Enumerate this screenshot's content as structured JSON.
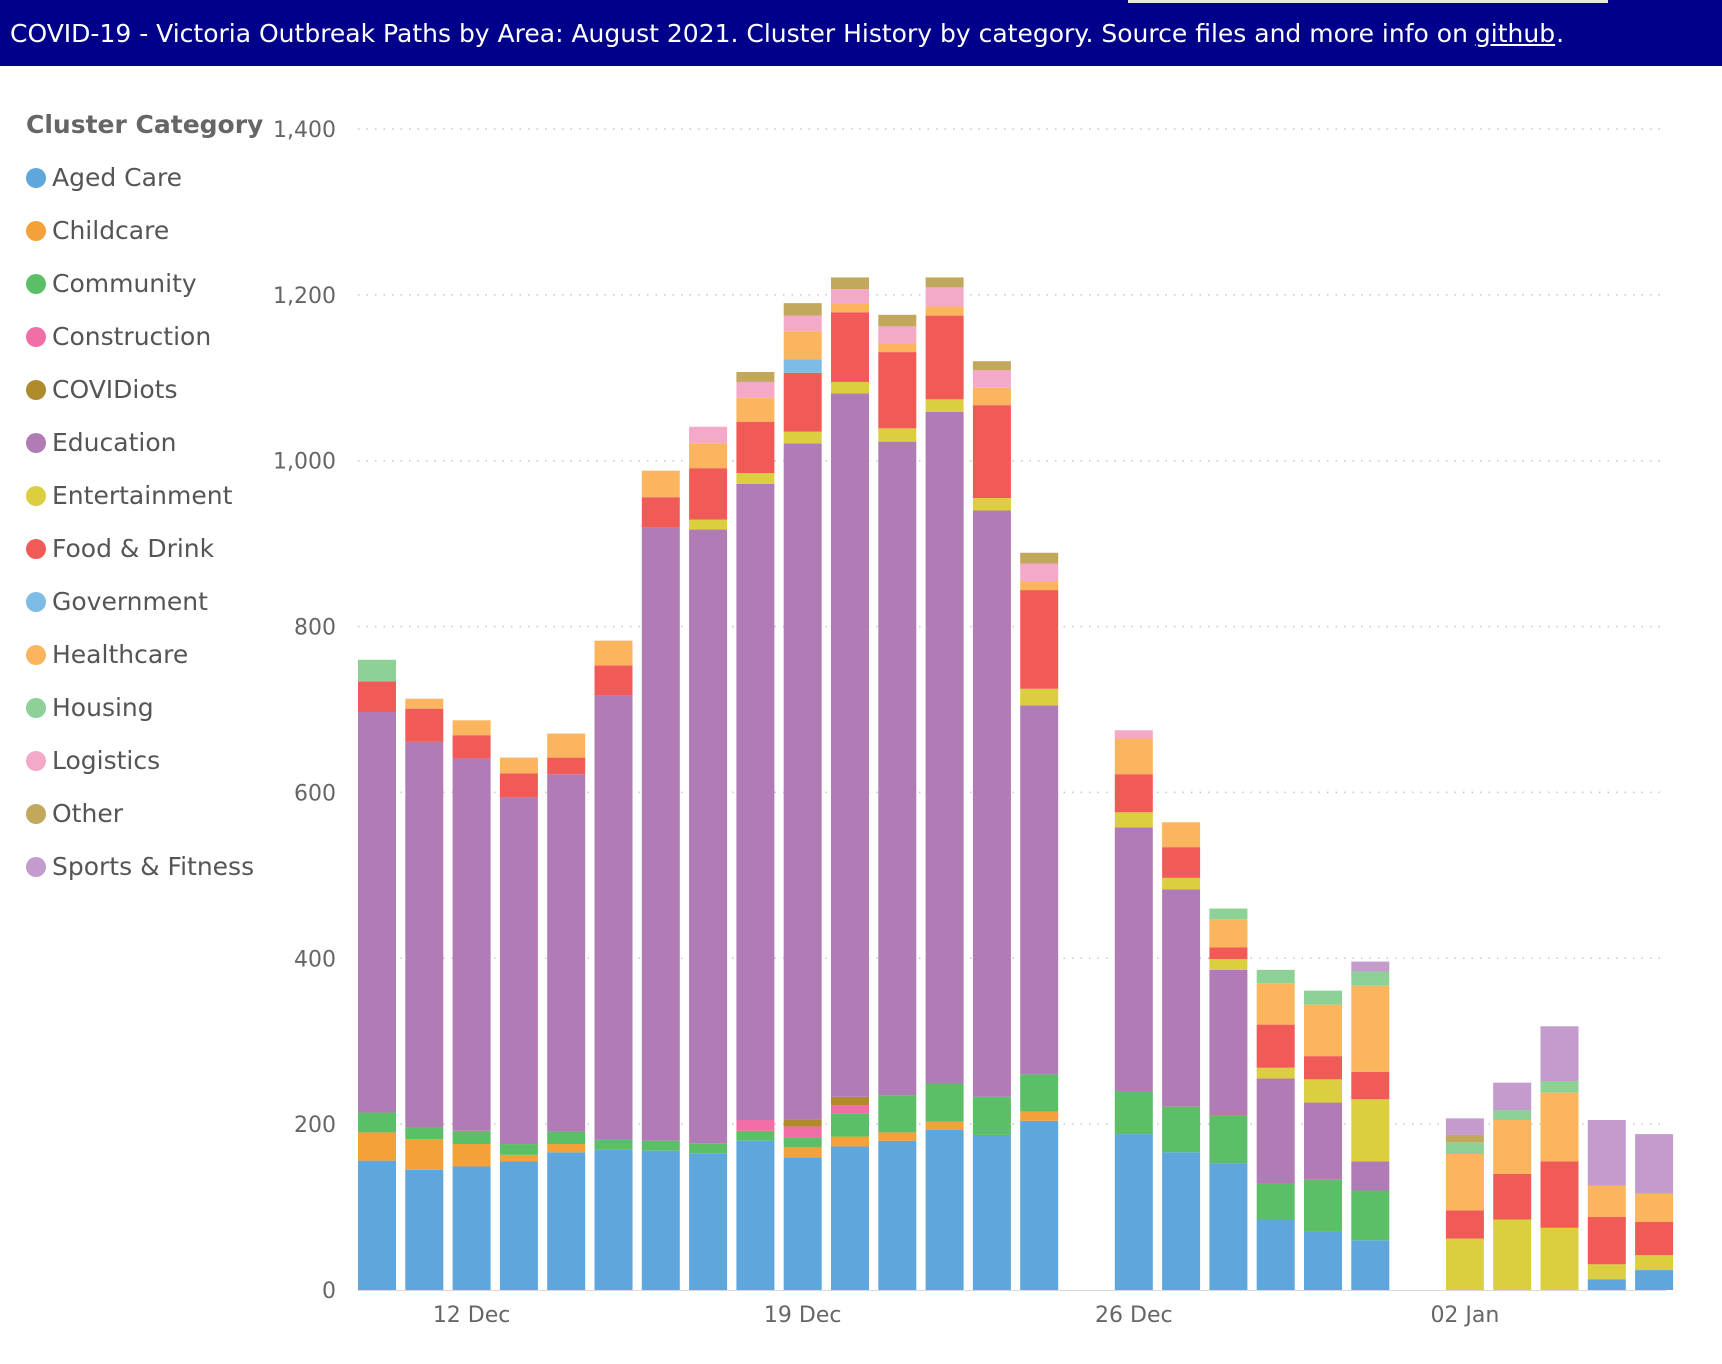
{
  "header": {
    "title": "COVID-19  - Victoria Outbreak Paths by Area: August 2021.  Cluster History by category. Source files and more info on",
    "link_label": "github",
    "tail": "."
  },
  "chart_data": {
    "type": "bar",
    "stacked": true,
    "legend_title": "Cluster Category",
    "legend_position": "left",
    "grid": true,
    "ylim": [
      0,
      1400
    ],
    "y_ticks": [
      0,
      200,
      400,
      600,
      800,
      1000,
      1200,
      1400
    ],
    "y_tick_labels": [
      "0",
      "200",
      "400",
      "600",
      "800",
      "1,000",
      "1,200",
      "1,400"
    ],
    "x_ticks": [
      {
        "date": "2021-12-12",
        "label": "12 Dec"
      },
      {
        "date": "2021-12-19",
        "label": "19 Dec"
      },
      {
        "date": "2021-12-26",
        "label": "26 Dec"
      },
      {
        "date": "2022-01-02",
        "label": "02 Jan"
      }
    ],
    "categories": [
      "2021-12-10",
      "2021-12-11",
      "2021-12-12",
      "2021-12-13",
      "2021-12-14",
      "2021-12-15",
      "2021-12-16",
      "2021-12-17",
      "2021-12-18",
      "2021-12-19",
      "2021-12-20",
      "2021-12-21",
      "2021-12-22",
      "2021-12-23",
      "2021-12-24",
      "2021-12-25",
      "2021-12-26",
      "2021-12-27",
      "2021-12-28",
      "2021-12-29",
      "2021-12-30",
      "2021-12-31",
      "2022-01-01",
      "2022-01-02",
      "2022-01-03",
      "2022-01-04",
      "2022-01-05",
      "2022-01-06"
    ],
    "series": [
      {
        "name": "Aged Care",
        "color": "#5ea6db",
        "values": [
          156,
          145,
          149,
          155,
          166,
          169,
          168,
          165,
          180,
          160,
          173,
          180,
          193,
          187,
          204,
          0,
          188,
          166,
          153,
          85,
          70,
          60,
          0,
          0,
          0,
          0,
          13,
          24
        ]
      },
      {
        "name": "Childcare",
        "color": "#f5a13a",
        "values": [
          34,
          37,
          27,
          8,
          10,
          0,
          0,
          0,
          0,
          12,
          12,
          10,
          10,
          0,
          11,
          0,
          0,
          0,
          0,
          0,
          0,
          0,
          0,
          0,
          0,
          0,
          0,
          0
        ]
      },
      {
        "name": "Community",
        "color": "#5cbf68",
        "values": [
          24,
          14,
          16,
          13,
          15,
          12,
          12,
          12,
          12,
          12,
          28,
          45,
          46,
          46,
          45,
          0,
          52,
          55,
          58,
          44,
          63,
          60,
          0,
          0,
          0,
          0,
          0,
          0
        ]
      },
      {
        "name": "Construction",
        "color": "#f06fa6",
        "values": [
          0,
          0,
          0,
          0,
          0,
          0,
          0,
          0,
          13,
          13,
          10,
          0,
          0,
          0,
          0,
          0,
          0,
          0,
          0,
          0,
          0,
          0,
          0,
          0,
          0,
          0,
          0,
          0
        ]
      },
      {
        "name": "COVIDiots",
        "color": "#b08b2e",
        "values": [
          0,
          0,
          0,
          0,
          0,
          0,
          0,
          0,
          0,
          9,
          10,
          0,
          0,
          0,
          0,
          0,
          0,
          0,
          0,
          0,
          0,
          0,
          0,
          0,
          0,
          0,
          0,
          0
        ]
      },
      {
        "name": "Education",
        "color": "#b17bb5",
        "values": [
          483,
          465,
          449,
          418,
          431,
          536,
          740,
          740,
          767,
          815,
          848,
          788,
          810,
          707,
          445,
          0,
          318,
          262,
          175,
          126,
          93,
          35,
          0,
          0,
          0,
          0,
          0,
          0
        ]
      },
      {
        "name": "Entertainment",
        "color": "#dccf3f",
        "values": [
          0,
          0,
          0,
          0,
          0,
          0,
          0,
          12,
          13,
          14,
          14,
          16,
          15,
          15,
          20,
          0,
          18,
          14,
          13,
          13,
          28,
          75,
          0,
          62,
          85,
          75,
          18,
          18
        ]
      },
      {
        "name": "Food & Drink",
        "color": "#f05a57",
        "values": [
          37,
          40,
          28,
          29,
          20,
          36,
          36,
          62,
          62,
          71,
          84,
          92,
          101,
          112,
          119,
          0,
          46,
          37,
          14,
          52,
          28,
          33,
          0,
          34,
          55,
          80,
          57,
          40
        ]
      },
      {
        "name": "Government",
        "color": "#7ebce6",
        "values": [
          0,
          0,
          0,
          0,
          0,
          0,
          0,
          0,
          0,
          16,
          0,
          0,
          0,
          0,
          0,
          0,
          0,
          0,
          0,
          0,
          0,
          0,
          0,
          0,
          0,
          0,
          0,
          0
        ]
      },
      {
        "name": "Healthcare",
        "color": "#fbb55e",
        "values": [
          0,
          12,
          18,
          19,
          29,
          30,
          32,
          30,
          29,
          34,
          10,
          11,
          11,
          21,
          11,
          0,
          43,
          30,
          34,
          50,
          62,
          104,
          0,
          68,
          65,
          83,
          38,
          34
        ]
      },
      {
        "name": "Housing",
        "color": "#8ed196",
        "values": [
          26,
          0,
          0,
          0,
          0,
          0,
          0,
          0,
          0,
          0,
          0,
          0,
          0,
          0,
          0,
          0,
          0,
          0,
          13,
          16,
          17,
          17,
          0,
          14,
          12,
          14,
          0,
          0
        ]
      },
      {
        "name": "Logistics",
        "color": "#f5a9c8",
        "values": [
          0,
          0,
          0,
          0,
          0,
          0,
          0,
          20,
          19,
          19,
          18,
          20,
          23,
          21,
          21,
          0,
          10,
          0,
          0,
          0,
          0,
          0,
          0,
          0,
          0,
          0,
          0,
          0
        ]
      },
      {
        "name": "Other",
        "color": "#c2a85c",
        "values": [
          0,
          0,
          0,
          0,
          0,
          0,
          0,
          0,
          12,
          15,
          14,
          14,
          12,
          11,
          13,
          0,
          0,
          0,
          0,
          0,
          0,
          0,
          0,
          9,
          0,
          0,
          0,
          0
        ]
      },
      {
        "name": "Sports & Fitness",
        "color": "#c39bcc",
        "values": [
          0,
          0,
          0,
          0,
          0,
          0,
          0,
          0,
          0,
          0,
          0,
          0,
          0,
          0,
          0,
          0,
          0,
          0,
          0,
          0,
          0,
          12,
          0,
          20,
          33,
          66,
          79,
          72
        ]
      }
    ]
  }
}
